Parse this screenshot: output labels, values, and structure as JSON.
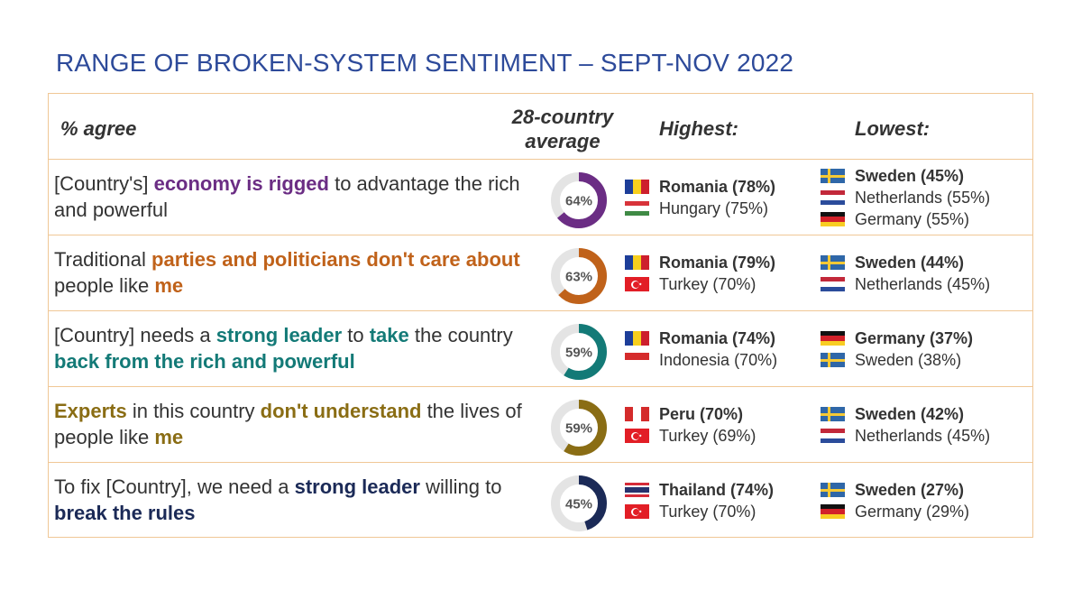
{
  "title": "RANGE OF BROKEN-SYSTEM SENTIMENT – SEPT-NOV 2022",
  "headers": {
    "agree": "% agree",
    "avg_line1": "28-country",
    "avg_line2": "average",
    "highest": "Highest:",
    "lowest": "Lowest:"
  },
  "colors": {
    "purple": "#6b2d84",
    "orange": "#c0621a",
    "teal": "#137a77",
    "olive": "#8a6d14",
    "navy": "#1b2a57",
    "donut_bg": "#e4e4e4",
    "border": "#f0c796"
  },
  "chart_data": {
    "type": "table",
    "rows": [
      {
        "segments": [
          {
            "text": "[Country's] ",
            "bold": false
          },
          {
            "text": "economy is rigged",
            "bold": true,
            "color": "#6b2d84"
          },
          {
            "text": " to advantage the rich and powerful",
            "bold": false
          }
        ],
        "average": 64,
        "average_label": "64%",
        "color": "#6b2d84",
        "highest": [
          {
            "name": "Romania (78%)",
            "flag": "romania",
            "bold": true
          },
          {
            "name": "Hungary (75%)",
            "flag": "hungary",
            "bold": false
          }
        ],
        "lowest": [
          {
            "name": "Sweden (45%)",
            "flag": "sweden",
            "bold": true
          },
          {
            "name": "Netherlands (55%)",
            "flag": "netherlands",
            "bold": false
          },
          {
            "name": " Germany (55%)",
            "flag": "germany",
            "bold": false
          }
        ]
      },
      {
        "segments": [
          {
            "text": "Traditional ",
            "bold": false
          },
          {
            "text": "parties and politicians don't care about",
            "bold": true,
            "color": "#c0621a"
          },
          {
            "text": " people like ",
            "bold": false
          },
          {
            "text": "me",
            "bold": true,
            "color": "#c0621a"
          }
        ],
        "average": 63,
        "average_label": "63%",
        "color": "#c0621a",
        "highest": [
          {
            "name": "Romania (79%)",
            "flag": "romania",
            "bold": true
          },
          {
            "name": "Turkey (70%)",
            "flag": "turkey",
            "bold": false
          }
        ],
        "lowest": [
          {
            "name": "Sweden (44%)",
            "flag": "sweden",
            "bold": true
          },
          {
            "name": "Netherlands (45%)",
            "flag": "netherlands",
            "bold": false
          }
        ]
      },
      {
        "segments": [
          {
            "text": "[Country] needs a ",
            "bold": false
          },
          {
            "text": "strong leader",
            "bold": true,
            "color": "#137a77"
          },
          {
            "text": " to ",
            "bold": false
          },
          {
            "text": "take",
            "bold": true,
            "color": "#137a77"
          },
          {
            "text": " the country ",
            "bold": false
          },
          {
            "text": "back from the rich and powerful",
            "bold": true,
            "color": "#137a77"
          }
        ],
        "average": 59,
        "average_label": "59%",
        "color": "#137a77",
        "highest": [
          {
            "name": "Romania (74%)",
            "flag": "romania",
            "bold": true
          },
          {
            "name": "Indonesia (70%)",
            "flag": "indonesia",
            "bold": false
          }
        ],
        "lowest": [
          {
            "name": "Germany (37%)",
            "flag": "germany",
            "bold": true
          },
          {
            "name": "Sweden (38%)",
            "flag": "sweden",
            "bold": false
          }
        ]
      },
      {
        "segments": [
          {
            "text": "Experts",
            "bold": true,
            "color": "#8a6d14"
          },
          {
            "text": " in this country ",
            "bold": false
          },
          {
            "text": "don't understand",
            "bold": true,
            "color": "#8a6d14"
          },
          {
            "text": " the lives of people like ",
            "bold": false
          },
          {
            "text": "me",
            "bold": true,
            "color": "#8a6d14"
          }
        ],
        "average": 59,
        "average_label": "59%",
        "color": "#8a6d14",
        "highest": [
          {
            "name": "Peru (70%)",
            "flag": "peru",
            "bold": true
          },
          {
            "name": "Turkey (69%)",
            "flag": "turkey",
            "bold": false
          }
        ],
        "lowest": [
          {
            "name": "Sweden (42%)",
            "flag": "sweden",
            "bold": true
          },
          {
            "name": "Netherlands (45%)",
            "flag": "netherlands",
            "bold": false
          }
        ]
      },
      {
        "segments": [
          {
            "text": "To fix [Country], we need a ",
            "bold": false
          },
          {
            "text": "strong leader",
            "bold": true,
            "color": "#1b2a57"
          },
          {
            "text": " willing to ",
            "bold": false
          },
          {
            "text": "break the rules",
            "bold": true,
            "color": "#1b2a57"
          }
        ],
        "average": 45,
        "average_label": "45%",
        "color": "#1b2a57",
        "highest": [
          {
            "name": "Thailand (74%)",
            "flag": "thailand",
            "bold": true
          },
          {
            "name": "Turkey (70%)",
            "flag": "turkey",
            "bold": false
          }
        ],
        "lowest": [
          {
            "name": "Sweden (27%)",
            "flag": "sweden",
            "bold": true
          },
          {
            "name": "Germany (29%)",
            "flag": "germany",
            "bold": false
          }
        ]
      }
    ]
  }
}
